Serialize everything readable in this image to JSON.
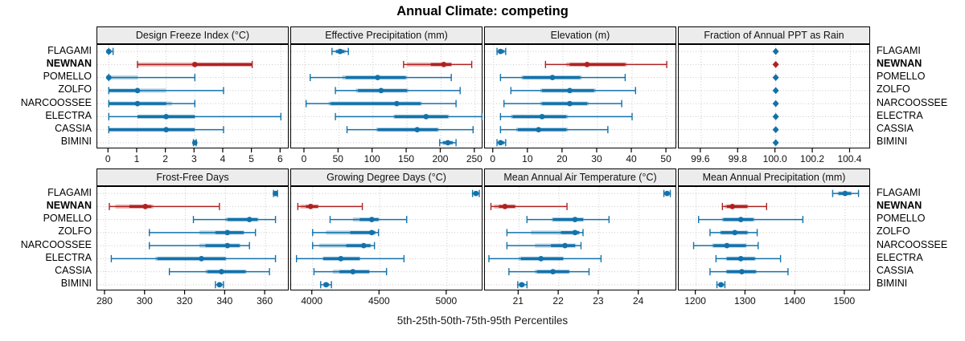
{
  "header": {
    "title": "Annual Climate: competing"
  },
  "footer_label": "5th-25th-50th-75th-95th Percentiles",
  "colors": {
    "site_default": "#1272ab",
    "site_highlight": "#b02222",
    "strip_bg": "#ececec",
    "grid": "#c8c8c8",
    "panel_border": "#000000"
  },
  "chart_data": {
    "type": "dotplot",
    "subtype": "percentile-interval-trellis",
    "layout": {
      "rows": 2,
      "cols": 4,
      "legend_position": "bottom-caption",
      "grid": "dotted"
    },
    "sites": [
      "FLAGAMI",
      "NEWNAN",
      "POMELLO",
      "ZOLFO",
      "NARCOOSSEE",
      "ELECTRA",
      "CASSIA",
      "BIMINI"
    ],
    "highlight_site": "NEWNAN",
    "values_key": [
      "p5",
      "p25",
      "core_lo",
      "median",
      "core_hi",
      "p75",
      "p95"
    ],
    "panels": [
      {
        "title": "Design Freeze Index (°C)",
        "xlim": [
          -0.4,
          6.3
        ],
        "tick_values": [
          0,
          1,
          2,
          3,
          4,
          5,
          6
        ],
        "tick_labels": [
          "0",
          "1",
          "2",
          "3",
          "4",
          "5",
          "6"
        ],
        "marker": "circle",
        "values": [
          [
            0,
            0,
            0,
            0,
            0,
            0,
            0.15
          ],
          [
            1,
            1,
            3,
            3,
            5,
            5,
            5
          ],
          [
            0,
            0,
            0,
            0,
            0,
            1,
            3
          ],
          [
            0,
            0,
            0,
            1,
            1,
            2,
            4
          ],
          [
            0,
            0,
            0,
            1,
            2,
            2.2,
            3
          ],
          [
            0,
            1,
            1,
            2,
            3,
            3,
            6
          ],
          [
            0,
            0,
            0,
            2,
            3,
            3,
            4
          ],
          [
            2.95,
            2.95,
            2.95,
            3,
            3.05,
            3.05,
            3.05
          ]
        ]
      },
      {
        "title": "Effective Precipitation (mm)",
        "xlim": [
          -20,
          262
        ],
        "tick_values": [
          0,
          50,
          100,
          150,
          200,
          250
        ],
        "tick_labels": [
          "0",
          "50",
          "100",
          "150",
          "200",
          "250"
        ],
        "marker": "circle",
        "values": [
          [
            40,
            45,
            46,
            52,
            58,
            60,
            64
          ],
          [
            145,
            150,
            185,
            204,
            215,
            216,
            245
          ],
          [
            8,
            55,
            60,
            107,
            148,
            150,
            215
          ],
          [
            45,
            75,
            78,
            112,
            150,
            152,
            228
          ],
          [
            2,
            35,
            38,
            135,
            170,
            172,
            222
          ],
          [
            45,
            130,
            132,
            178,
            210,
            212,
            260
          ],
          [
            62,
            105,
            107,
            165,
            195,
            197,
            247
          ],
          [
            198,
            202,
            203,
            210,
            217,
            218,
            222
          ]
        ]
      },
      {
        "title": "Elevation (m)",
        "xlim": [
          -2.5,
          53
        ],
        "tick_values": [
          0,
          10,
          20,
          30,
          40,
          50
        ],
        "tick_labels": [
          "0",
          "10",
          "20",
          "30",
          "40",
          "50"
        ],
        "marker": "circle",
        "values": [
          [
            1,
            1.4,
            1.5,
            2,
            3,
            3.2,
            3.5
          ],
          [
            15,
            21,
            22,
            27,
            38,
            38.5,
            50
          ],
          [
            2,
            8,
            8.5,
            17,
            25,
            25.5,
            38
          ],
          [
            5,
            13.5,
            14,
            22,
            29,
            29.5,
            41
          ],
          [
            3,
            13.5,
            14,
            22,
            27,
            27.5,
            37
          ],
          [
            2,
            5,
            5.5,
            14,
            21,
            21.5,
            40
          ],
          [
            2,
            6.5,
            7,
            13,
            21,
            21.5,
            33
          ],
          [
            1,
            1.4,
            1.5,
            2,
            3,
            3.2,
            3.5
          ]
        ]
      },
      {
        "title": "Fraction of Annual PPT as Rain",
        "xlim": [
          99.48,
          100.51
        ],
        "tick_values": [
          99.6,
          99.8,
          100.0,
          100.2,
          100.4
        ],
        "tick_labels": [
          "99.6",
          "99.8",
          "100.0",
          "100.2",
          "100.4"
        ],
        "marker": "diamond",
        "values": [
          [
            100,
            100,
            100,
            100,
            100,
            100,
            100
          ],
          [
            100,
            100,
            100,
            100,
            100,
            100,
            100
          ],
          [
            100,
            100,
            100,
            100,
            100,
            100,
            100
          ],
          [
            100,
            100,
            100,
            100,
            100,
            100,
            100
          ],
          [
            100,
            100,
            100,
            100,
            100,
            100,
            100
          ],
          [
            100,
            100,
            100,
            100,
            100,
            100,
            100
          ],
          [
            100,
            100,
            100,
            100,
            100,
            100,
            100
          ],
          [
            100,
            100,
            100,
            100,
            100,
            100,
            100
          ]
        ]
      },
      {
        "title": "Frost-Free Days",
        "xlim": [
          276,
          372
        ],
        "tick_values": [
          280,
          300,
          320,
          340,
          360
        ],
        "tick_labels": [
          "280",
          "300",
          "320",
          "340",
          "360"
        ],
        "marker": "circle",
        "values": [
          [
            364,
            364.5,
            364.5,
            365,
            365.5,
            365.5,
            366
          ],
          [
            282,
            285,
            292,
            300,
            303,
            304,
            337
          ],
          [
            324,
            340,
            341,
            352,
            356,
            356.5,
            365
          ],
          [
            302,
            327,
            335,
            341,
            349,
            349.5,
            355
          ],
          [
            302,
            327,
            330,
            341,
            347,
            347.5,
            352
          ],
          [
            283,
            305,
            306,
            328,
            340,
            340.5,
            365
          ],
          [
            312,
            330,
            331,
            338,
            350,
            350.5,
            362
          ],
          [
            335,
            336,
            336,
            337,
            338,
            338.5,
            339
          ]
        ]
      },
      {
        "title": "Growing Degree Days (°C)",
        "xlim": [
          3840,
          5270
        ],
        "tick_values": [
          4000,
          4500,
          5000
        ],
        "tick_labels": [
          "4000",
          "4500",
          "5000"
        ],
        "marker": "circle",
        "values": [
          [
            5190,
            5200,
            5200,
            5215,
            5230,
            5230,
            5240
          ],
          [
            3890,
            3910,
            3950,
            3985,
            4040,
            4045,
            4370
          ],
          [
            4130,
            4300,
            4350,
            4440,
            4490,
            4495,
            4700
          ],
          [
            4000,
            4100,
            4280,
            4440,
            4465,
            4470,
            4490
          ],
          [
            4000,
            4050,
            4250,
            4380,
            4430,
            4435,
            4460
          ],
          [
            3880,
            4075,
            4080,
            4210,
            4350,
            4355,
            4680
          ],
          [
            4010,
            4150,
            4200,
            4300,
            4420,
            4425,
            4550
          ],
          [
            4060,
            4080,
            4085,
            4100,
            4120,
            4125,
            4140
          ]
        ]
      },
      {
        "title": "Mean Annual Air Temperature (°C)",
        "xlim": [
          20.15,
          24.95
        ],
        "tick_values": [
          21,
          22,
          23,
          24
        ],
        "tick_labels": [
          "21",
          "22",
          "23",
          "24"
        ],
        "marker": "circle",
        "values": [
          [
            24.62,
            24.66,
            24.67,
            24.7,
            24.74,
            24.75,
            24.78
          ],
          [
            20.3,
            20.38,
            20.5,
            20.65,
            20.9,
            20.92,
            22.2
          ],
          [
            21.2,
            21.82,
            21.85,
            22.4,
            22.6,
            22.62,
            23.25
          ],
          [
            20.7,
            21.3,
            22.05,
            22.4,
            22.5,
            22.52,
            22.6
          ],
          [
            20.7,
            21.4,
            21.8,
            22.15,
            22.4,
            22.42,
            22.55
          ],
          [
            20.25,
            21.0,
            21.05,
            21.55,
            22.1,
            22.12,
            23.05
          ],
          [
            20.75,
            21.4,
            21.45,
            21.85,
            22.25,
            22.27,
            22.75
          ],
          [
            20.97,
            21.0,
            21.02,
            21.07,
            21.13,
            21.15,
            21.2
          ]
        ]
      },
      {
        "title": "Mean Annual Precipitation (mm)",
        "xlim": [
          1165,
          1552
        ],
        "tick_values": [
          1200,
          1300,
          1400,
          1500
        ],
        "tick_labels": [
          "1200",
          "1300",
          "1400",
          "1500"
        ],
        "marker": "circle",
        "values": [
          [
            1475,
            1485,
            1487,
            1500,
            1512,
            1513,
            1527
          ],
          [
            1253,
            1258,
            1262,
            1273,
            1303,
            1305,
            1342
          ],
          [
            1205,
            1252,
            1255,
            1290,
            1315,
            1318,
            1415
          ],
          [
            1228,
            1248,
            1250,
            1278,
            1303,
            1305,
            1323
          ],
          [
            1195,
            1232,
            1235,
            1262,
            1300,
            1302,
            1325
          ],
          [
            1240,
            1260,
            1262,
            1290,
            1318,
            1320,
            1370
          ],
          [
            1228,
            1260,
            1262,
            1292,
            1320,
            1322,
            1385
          ],
          [
            1242,
            1245,
            1246,
            1250,
            1255,
            1256,
            1258
          ]
        ]
      }
    ]
  }
}
